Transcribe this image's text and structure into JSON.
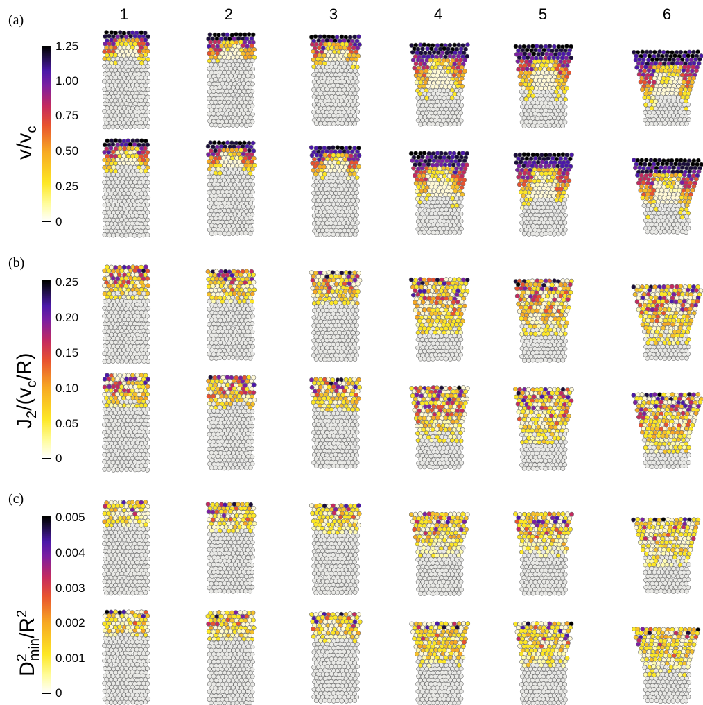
{
  "column_labels": [
    "1",
    "2",
    "3",
    "4",
    "5",
    "6"
  ],
  "panels": [
    {
      "label": "(a)",
      "title_main": "v/v",
      "title_sub": "c",
      "ticks": [
        "1.25",
        "1.00",
        "0.75",
        "0.50",
        "0.25",
        "0"
      ]
    },
    {
      "label": "(b)",
      "title_main": "J",
      "title_sub": "2",
      "title_rest": "/(v",
      "title_sub2": "c",
      "title_end": "/R)",
      "ticks": [
        "0.25",
        "0.20",
        "0.15",
        "0.10",
        "0.05",
        "0"
      ]
    },
    {
      "label": "(c)",
      "title_main": "D",
      "title_sup": "2",
      "title_sub": "min",
      "title_rest": "/R",
      "title_sup2": "2",
      "ticks": [
        "0.005",
        "0.004",
        "0.003",
        "0.002",
        "0.001",
        "0"
      ]
    }
  ],
  "colors": {
    "low": "#ffffff",
    "mid_yellow": "#fde725",
    "mid_orange": "#f7a823",
    "red": "#e8532f",
    "purple": "#7a1fa2",
    "high": "#000000",
    "grain_fill": "#e9e9e6",
    "grain_stroke": "#6e6e6e"
  }
}
